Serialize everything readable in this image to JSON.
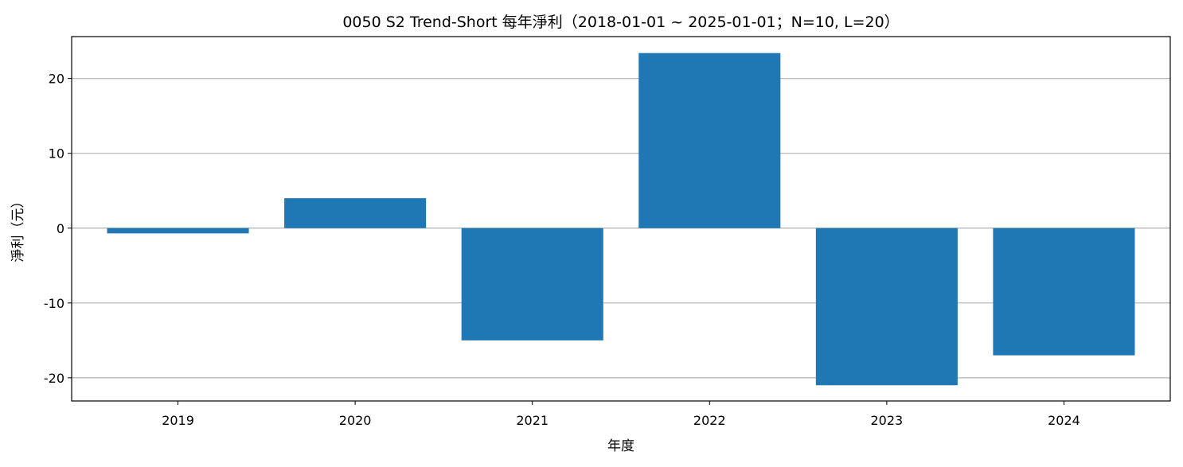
{
  "chart_data": {
    "type": "bar",
    "title": "0050 S2 Trend-Short 每年淨利（2018-01-01 ~ 2025-01-01；N=10, L=20）",
    "xlabel": "年度",
    "ylabel": "淨利（元）",
    "categories": [
      "2019",
      "2020",
      "2021",
      "2022",
      "2023",
      "2024"
    ],
    "values": [
      -0.7,
      4.0,
      -15.0,
      23.4,
      -21.0,
      -17.0
    ],
    "ylim": [
      -23.1,
      25.6
    ],
    "yticks": [
      20,
      10,
      0,
      -10,
      -20
    ],
    "ytick_labels": [
      "20",
      "10",
      "0",
      "-10",
      "-20"
    ],
    "grid": "y",
    "bar_color": "#1f77b4",
    "grid_color": "#b0b0b0"
  }
}
